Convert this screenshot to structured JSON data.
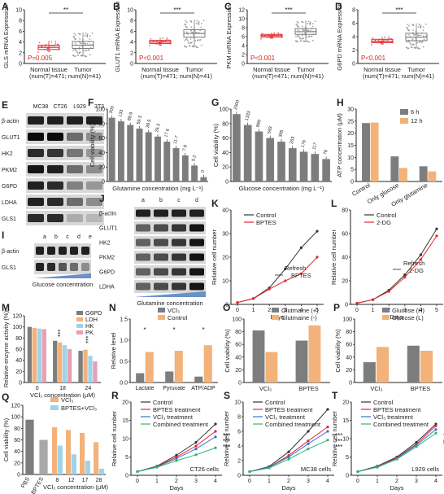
{
  "colors": {
    "red": "#e2282d",
    "gray": "#7d7d7d",
    "dark": "#333333",
    "orange": "#f2b27a",
    "blue": "#3a6fd0",
    "green": "#2bb673",
    "pink": "#e6a0b4",
    "lightblue": "#9fd3ea"
  },
  "panels": {
    "A": {
      "letter": "A",
      "sig": "**",
      "pval": "P=0.005",
      "ylabel": "GLS mRNA Expression",
      "yticks": [
        "0",
        "2",
        "4",
        "6",
        "8",
        "10"
      ],
      "xcat": [
        "Normal tissue",
        "Tumor"
      ],
      "xsub": "(num(T)=471; num(N)=41)"
    },
    "B": {
      "letter": "B",
      "sig": "***",
      "pval": "P<0.001",
      "ylabel": "GLUT1 mRNA Expression",
      "yticks": [
        "0",
        "2",
        "4",
        "6",
        "8",
        "10"
      ],
      "xcat": [
        "Normal tissue",
        "Tumor"
      ],
      "xsub": "(num(T)=471; num(N)=41)"
    },
    "C": {
      "letter": "C",
      "sig": "***",
      "pval": "P<0.001",
      "ylabel": "PKM mRNA Expression",
      "yticks": [
        "0",
        "2",
        "4",
        "6",
        "8",
        "10",
        "12"
      ],
      "xcat": [
        "Normal tissue",
        "Tumor"
      ],
      "xsub": "(num(T)=471; num(N)=41)"
    },
    "D": {
      "letter": "D",
      "sig": "***",
      "pval": "P<0.001",
      "ylabel": "G6PD mRNA Expression",
      "yticks": [
        "0",
        "2",
        "4",
        "6",
        "8"
      ],
      "xcat": [
        "Normal tissue",
        "Tumor"
      ],
      "xsub": "(num(T)=471; num(N)=41)"
    },
    "E": {
      "letter": "E",
      "cols": [
        "MC38",
        "CT26",
        "L929",
        "3T3"
      ],
      "rows": [
        "β-actin",
        "GLUT1",
        "HK2",
        "PKM2",
        "G6PD",
        "LDHA",
        "GLS1"
      ]
    },
    "F": {
      "letter": "F",
      "xlabel": "Glutamine concentration (mg L⁻¹)",
      "ylabel": "Cell viability (%)",
      "yticks": [
        "0",
        "20",
        "40",
        "60",
        "80",
        "100"
      ]
    },
    "G": {
      "letter": "G",
      "xlabel": "Glucose concentration (mg L⁻¹)",
      "ylabel": "Cell viability (%)",
      "yticks": [
        "0",
        "20",
        "40",
        "60",
        "80",
        "100"
      ]
    },
    "H": {
      "letter": "H",
      "ylabel": "ATP concentration (μM)",
      "yticks": [
        "0",
        "5",
        "10",
        "15",
        "20",
        "25",
        "30"
      ]
    },
    "I": {
      "letter": "I",
      "lanes": [
        "a",
        "b",
        "c",
        "d",
        "e"
      ],
      "rows": [
        "β-actin",
        "GLS1"
      ],
      "xlabel": "Glucose concentration"
    },
    "J": {
      "letter": "J",
      "lanes": [
        "a",
        "b",
        "c",
        "d"
      ],
      "rows": [
        "β-actin",
        "GLUT1",
        "HK2",
        "PKM2",
        "G6PD",
        "LDHA"
      ],
      "xlabel": "Glutamine concentration"
    },
    "K": {
      "letter": "K",
      "ylabel": "Relative cell number",
      "xlabel": "Days",
      "annot": [
        "Refresh",
        "BPTES"
      ],
      "yticks": [
        "0",
        "10",
        "20",
        "30",
        "40"
      ]
    },
    "L": {
      "letter": "L",
      "ylabel": "Relative cell number",
      "xlabel": "Days",
      "annot": [
        "Refresh",
        "2-DG"
      ],
      "yticks": [
        "0",
        "20",
        "40",
        "60",
        "80"
      ]
    },
    "M": {
      "letter": "M",
      "ylabel": "Relative enzyme activity (%)",
      "xlabel": "VCl₃ concentration (μM)",
      "yticks": [
        "0",
        "20",
        "40",
        "60",
        "80",
        "100",
        "120"
      ],
      "sig": [
        "***",
        "***"
      ]
    },
    "N": {
      "letter": "N",
      "ylabel": "Relative level",
      "yticks": [
        "0.0",
        "0.5",
        "1.0",
        "1.5"
      ],
      "sig": [
        "*",
        "*",
        "*"
      ]
    },
    "O": {
      "letter": "O",
      "ylabel": "Cell viability (%)",
      "yticks": [
        "0",
        "20",
        "40",
        "60",
        "80",
        "100"
      ]
    },
    "P": {
      "letter": "P",
      "ylabel": "Cell viability (%)",
      "yticks": [
        "0",
        "20",
        "40",
        "60",
        "80",
        "100"
      ]
    },
    "Q": {
      "letter": "Q",
      "ylabel": "Cell viability (%)",
      "xlabel": "VCl₃ concentration (μM)",
      "yticks": [
        "0",
        "20",
        "40",
        "60",
        "80",
        "100",
        "120"
      ]
    },
    "R": {
      "letter": "R",
      "ylabel": "Relative cell number",
      "xlabel": "Days",
      "cell": "CT26 cells",
      "yticks": [
        "0",
        "5",
        "10",
        "15",
        "20"
      ],
      "sig": [
        "***",
        "***",
        "***"
      ]
    },
    "S": {
      "letter": "S",
      "ylabel": "Relative cell number",
      "xlabel": "Days",
      "cell": "MC38 cells",
      "yticks": [
        "0",
        "2",
        "4",
        "6",
        "8",
        "10"
      ],
      "sig": [
        "***",
        "***",
        "***"
      ]
    },
    "T": {
      "letter": "T",
      "ylabel": "Relative cell number",
      "xlabel": "Days",
      "cell": "L929 cells",
      "yticks": [
        "0",
        "5",
        "10",
        "15",
        "20"
      ],
      "sig": [
        "*",
        "ns"
      ]
    }
  },
  "chart_data": [
    {
      "panel": "A",
      "type": "box",
      "categories": [
        "Normal tissue",
        "Tumor"
      ],
      "medians": [
        3.0,
        3.4
      ],
      "q1": [
        2.6,
        2.8
      ],
      "q3": [
        3.4,
        4.1
      ],
      "whisker_low": [
        2.1,
        1.3
      ],
      "whisker_high": [
        4.2,
        5.8
      ],
      "ylim": [
        0,
        10
      ]
    },
    {
      "panel": "B",
      "type": "box",
      "categories": [
        "Normal tissue",
        "Tumor"
      ],
      "medians": [
        4.0,
        5.6
      ],
      "q1": [
        3.7,
        4.9
      ],
      "q3": [
        4.3,
        6.3
      ],
      "whisker_low": [
        3.3,
        3.0
      ],
      "whisker_high": [
        4.8,
        8.2
      ],
      "ylim": [
        0,
        10
      ]
    },
    {
      "panel": "C",
      "type": "box",
      "categories": [
        "Normal tissue",
        "Tumor"
      ],
      "medians": [
        6.2,
        7.1
      ],
      "q1": [
        5.9,
        6.5
      ],
      "q3": [
        6.5,
        7.8
      ],
      "whisker_low": [
        5.5,
        4.8
      ],
      "whisker_high": [
        6.9,
        9.6
      ],
      "ylim": [
        0,
        12
      ]
    },
    {
      "panel": "D",
      "type": "box",
      "categories": [
        "Normal tissue",
        "Tumor"
      ],
      "medians": [
        3.3,
        3.9
      ],
      "q1": [
        3.1,
        3.4
      ],
      "q3": [
        3.6,
        4.5
      ],
      "whisker_low": [
        2.8,
        2.2
      ],
      "whisker_high": [
        4.0,
        6.0
      ],
      "ylim": [
        0,
        8
      ]
    },
    {
      "panel": "F",
      "type": "bar",
      "categories": [
        "300",
        "133",
        "88.9",
        "59.3",
        "39.5",
        "26.3",
        "17.6",
        "11.7",
        "7.8",
        "5.2",
        "0"
      ],
      "values": [
        88,
        83,
        78,
        73,
        68,
        62,
        55,
        46,
        36,
        22,
        6
      ],
      "ylim": [
        0,
        100
      ]
    },
    {
      "panel": "G",
      "type": "bar",
      "categories": [
        "2000",
        "1333",
        "889",
        "593",
        "395",
        "263",
        "176",
        "117",
        "78"
      ],
      "values": [
        93,
        78,
        69,
        60,
        55,
        46,
        41,
        38,
        31
      ],
      "ylim": [
        0,
        100
      ]
    },
    {
      "panel": "H",
      "type": "bar",
      "categories": [
        "Control",
        "Only glucose",
        "Only glutamine"
      ],
      "series": [
        {
          "name": "6 h",
          "values": [
            24.2,
            10.4,
            6.3
          ]
        },
        {
          "name": "12 h",
          "values": [
            24.4,
            5.6,
            4.2
          ]
        }
      ],
      "ylim": [
        0,
        30
      ]
    },
    {
      "panel": "K",
      "type": "line",
      "x": [
        0,
        1,
        2,
        3,
        4,
        5
      ],
      "series": [
        {
          "name": "Control",
          "values": [
            0.8,
            2.5,
            7,
            15,
            24,
            31
          ]
        },
        {
          "name": "BPTES",
          "values": [
            0.8,
            2.4,
            6.5,
            10,
            13,
            20
          ]
        }
      ],
      "ylim": [
        0,
        40
      ]
    },
    {
      "panel": "L",
      "type": "line",
      "x": [
        0,
        1,
        2,
        3,
        4,
        5
      ],
      "series": [
        {
          "name": "Control",
          "values": [
            1,
            4,
            12,
            25,
            42,
            64
          ]
        },
        {
          "name": "2-DG",
          "values": [
            1,
            4,
            11,
            23,
            38,
            58
          ]
        }
      ],
      "ylim": [
        0,
        80
      ]
    },
    {
      "panel": "M",
      "type": "bar",
      "categories": [
        "0",
        "18",
        "24"
      ],
      "series": [
        {
          "name": "G6PD",
          "values": [
            100,
            75,
            57
          ]
        },
        {
          "name": "LDH",
          "values": [
            98,
            72,
            59
          ]
        },
        {
          "name": "HK",
          "values": [
            97,
            67,
            48
          ]
        },
        {
          "name": "PK",
          "values": [
            96,
            60,
            38
          ]
        }
      ],
      "ylim": [
        0,
        120
      ]
    },
    {
      "panel": "N",
      "type": "bar",
      "categories": [
        "Lactate",
        "Pyruvate",
        "ATP/ADP"
      ],
      "series": [
        {
          "name": "VCl₃",
          "values": [
            0.22,
            0.26,
            0.14
          ]
        },
        {
          "name": "Control",
          "values": [
            0.72,
            0.75,
            0.88
          ]
        }
      ],
      "ylim": [
        0,
        1.5
      ]
    },
    {
      "panel": "O",
      "type": "bar",
      "categories": [
        "VCl₃",
        "BPTES"
      ],
      "series": [
        {
          "name": "Glutmaine (+)",
          "values": [
            82,
            66
          ]
        },
        {
          "name": "Glutmaine (-)",
          "values": [
            48,
            90
          ]
        }
      ],
      "ylim": [
        0,
        100
      ]
    },
    {
      "panel": "P",
      "type": "bar",
      "categories": [
        "VCl₃",
        "BPTES"
      ],
      "series": [
        {
          "name": "Glucose (H)",
          "values": [
            32,
            58
          ]
        },
        {
          "name": "Glucose (L)",
          "values": [
            56,
            50
          ]
        }
      ],
      "ylim": [
        0,
        100
      ]
    },
    {
      "panel": "Q",
      "type": "bar",
      "categories": [
        "PBS",
        "BPTES",
        "8",
        "12",
        "17",
        "28"
      ],
      "series": [
        {
          "name": "PBS",
          "values": [
            95,
            null,
            null,
            null,
            null,
            null
          ]
        },
        {
          "name": "BPTES",
          "values": [
            null,
            60,
            null,
            null,
            null,
            null
          ]
        },
        {
          "name": "VCl₃",
          "values": [
            null,
            null,
            82,
            77,
            72,
            56
          ]
        },
        {
          "name": "BPTES+VCl₃",
          "values": [
            null,
            null,
            50,
            35,
            24,
            10
          ]
        }
      ],
      "ylim": [
        0,
        120
      ]
    },
    {
      "panel": "R",
      "type": "line",
      "x": [
        0,
        1,
        2,
        3,
        4
      ],
      "series": [
        {
          "name": "Control",
          "values": [
            1,
            2.5,
            5.5,
            9,
            14
          ]
        },
        {
          "name": "BPTES treatment",
          "values": [
            1,
            2.4,
            5,
            8,
            12
          ]
        },
        {
          "name": "VCl₃ treatment",
          "values": [
            1,
            2.3,
            4.6,
            7.2,
            10.5
          ]
        },
        {
          "name": "Combined treatment",
          "values": [
            1,
            2.2,
            4,
            5.6,
            7.5
          ]
        }
      ],
      "ylim": [
        0,
        20
      ]
    },
    {
      "panel": "S",
      "type": "line",
      "x": [
        0,
        1,
        2,
        3,
        4
      ],
      "series": [
        {
          "name": "Control",
          "values": [
            0.5,
            1.2,
            3.2,
            6.0,
            9.0
          ]
        },
        {
          "name": "BPTES treatment",
          "values": [
            0.5,
            1.1,
            2.7,
            4.7,
            6.6
          ]
        },
        {
          "name": "VCl₃ treatment",
          "values": [
            0.5,
            1.1,
            2.5,
            4.3,
            6.0
          ]
        },
        {
          "name": "Combined treatment",
          "values": [
            0.5,
            1.0,
            2.2,
            3.6,
            4.8
          ]
        }
      ],
      "ylim": [
        0,
        10
      ]
    },
    {
      "panel": "T",
      "type": "line",
      "x": [
        0,
        1,
        2,
        3,
        4
      ],
      "series": [
        {
          "name": "Control",
          "values": [
            1,
            2.5,
            5,
            9,
            14
          ]
        },
        {
          "name": "BPTES treatment",
          "values": [
            1,
            2.4,
            4.8,
            8.5,
            13.5
          ]
        },
        {
          "name": "VCl₃ treatment",
          "values": [
            1,
            2.3,
            4.6,
            8.2,
            12.5
          ]
        },
        {
          "name": "Combined treatment",
          "values": [
            1,
            2.2,
            4.4,
            7.8,
            11.5
          ]
        }
      ],
      "ylim": [
        0,
        20
      ]
    }
  ]
}
